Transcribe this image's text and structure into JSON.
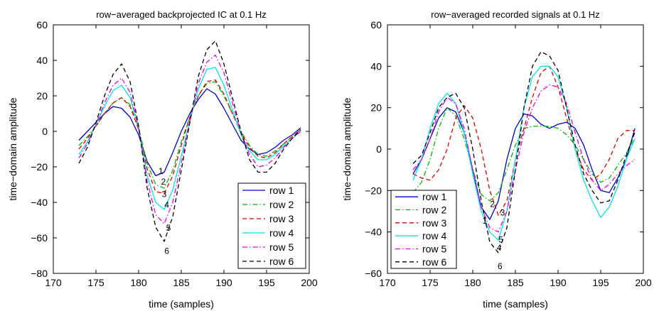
{
  "chart_data": [
    {
      "type": "line",
      "title": "row−averaged backprojected IC at 0.1 Hz",
      "xlabel": "time (samples)",
      "ylabel": "time−domain amplitude",
      "xlim": [
        170,
        200
      ],
      "ylim": [
        -80,
        60
      ],
      "xticks": [
        170,
        175,
        180,
        185,
        190,
        195,
        200
      ],
      "yticks": [
        -80,
        -60,
        -40,
        -20,
        0,
        20,
        40,
        60
      ],
      "xtick_labels": [
        "170",
        "175",
        "180",
        "185",
        "190",
        "195",
        "200"
      ],
      "ytick_labels": [
        "−80",
        "−60",
        "−40",
        "−20",
        "0",
        "20",
        "40",
        "60"
      ],
      "legend_position": "bottom-right",
      "x": [
        173,
        174,
        175,
        176,
        177,
        178,
        179,
        180,
        181,
        182,
        183,
        184,
        185,
        186,
        187,
        188,
        189,
        190,
        191,
        192,
        193,
        194,
        195,
        196,
        197,
        198,
        199
      ],
      "series": [
        {
          "name": "row 1",
          "color": "#0000cc",
          "dash": "",
          "values": [
            -5,
            0,
            5,
            10,
            14,
            13,
            8,
            -2,
            -17,
            -25,
            -23,
            -12,
            0,
            10,
            18,
            24,
            21,
            13,
            4,
            -5,
            -10,
            -13,
            -12,
            -9,
            -5,
            -2,
            2
          ]
        },
        {
          "name": "row 2",
          "color": "#00bb00",
          "dash": "7,3,1.5,3",
          "values": [
            -8,
            -3,
            3,
            10,
            16,
            19,
            15,
            2,
            -18,
            -30,
            -32,
            -22,
            -6,
            8,
            20,
            27,
            28,
            20,
            10,
            0,
            -8,
            -13,
            -14,
            -11,
            -7,
            -3,
            1
          ]
        },
        {
          "name": "row 3",
          "color": "#dd0000",
          "dash": "6,4",
          "values": [
            -10,
            -4,
            3,
            10,
            16,
            19,
            14,
            1,
            -21,
            -34,
            -35,
            -25,
            -8,
            8,
            20,
            28,
            29,
            21,
            10,
            -1,
            -9,
            -14,
            -15,
            -12,
            -7,
            -3,
            1
          ]
        },
        {
          "name": "row 4",
          "color": "#00e5e5",
          "dash": "",
          "values": [
            -13,
            -6,
            4,
            14,
            23,
            26,
            19,
            2,
            -25,
            -40,
            -44,
            -33,
            -14,
            6,
            24,
            35,
            36,
            26,
            12,
            -2,
            -11,
            -16,
            -16,
            -13,
            -8,
            -4,
            0
          ]
        },
        {
          "name": "row 5",
          "color": "#ee00ee",
          "dash": "7,3,1.5,3",
          "values": [
            -15,
            -7,
            4,
            16,
            26,
            30,
            22,
            2,
            -28,
            -47,
            -52,
            -40,
            -18,
            6,
            27,
            39,
            43,
            33,
            16,
            -1,
            -13,
            -20,
            -19,
            -15,
            -9,
            -4,
            0
          ]
        },
        {
          "name": "row 6",
          "color": "#000000",
          "dash": "6,4",
          "values": [
            -18,
            -9,
            5,
            20,
            32,
            38,
            28,
            3,
            -32,
            -54,
            -62,
            -48,
            -22,
            5,
            31,
            46,
            51,
            38,
            19,
            0,
            -16,
            -23,
            -23,
            -18,
            -10,
            -4,
            1
          ]
        }
      ],
      "annotations": [
        {
          "text": "1",
          "x": 182.6,
          "y": -24
        },
        {
          "text": "2",
          "x": 182.9,
          "y": -30
        },
        {
          "text": "3",
          "x": 183.0,
          "y": -37
        },
        {
          "text": "4",
          "x": 183.3,
          "y": -43
        },
        {
          "text": "5",
          "x": 183.5,
          "y": -56
        },
        {
          "text": "6",
          "x": 183.3,
          "y": -69
        }
      ]
    },
    {
      "type": "line",
      "title": "row−averaged recorded signals at 0.1 Hz",
      "xlabel": "time (samples)",
      "ylabel": "time−domain amplitude",
      "xlim": [
        170,
        200
      ],
      "ylim": [
        -60,
        60
      ],
      "xticks": [
        170,
        175,
        180,
        185,
        190,
        195,
        200
      ],
      "yticks": [
        -60,
        -40,
        -20,
        0,
        20,
        40,
        60
      ],
      "xtick_labels": [
        "170",
        "175",
        "180",
        "185",
        "190",
        "195",
        "200"
      ],
      "ytick_labels": [
        "−60",
        "−40",
        "−20",
        "0",
        "20",
        "40",
        "60"
      ],
      "legend_position": "bottom-left",
      "x": [
        173,
        174,
        175,
        176,
        177,
        178,
        179,
        180,
        181,
        182,
        183,
        184,
        185,
        186,
        187,
        188,
        189,
        190,
        191,
        192,
        193,
        194,
        195,
        196,
        197,
        198,
        199
      ],
      "series": [
        {
          "name": "row 1",
          "color": "#0000cc",
          "dash": "",
          "values": [
            -12,
            -5,
            5,
            15,
            20,
            18,
            8,
            -10,
            -28,
            -34,
            -25,
            -5,
            10,
            17,
            16,
            12,
            10,
            12,
            13,
            10,
            2,
            -10,
            -20,
            -21,
            -14,
            -5,
            10
          ]
        },
        {
          "name": "row 2",
          "color": "#00bb00",
          "dash": "7,3,1.5,3",
          "values": [
            -21,
            -16,
            -5,
            10,
            20,
            16,
            5,
            -10,
            -22,
            -25,
            -21,
            -10,
            2,
            10,
            11,
            11,
            11,
            10,
            7,
            2,
            -5,
            -12,
            -16,
            -14,
            -8,
            -2,
            5
          ]
        },
        {
          "name": "row 3",
          "color": "#dd0000",
          "dash": "6,4",
          "values": [
            -12,
            -14,
            -15,
            -10,
            0,
            15,
            21,
            15,
            0,
            -20,
            -32,
            -25,
            -5,
            10,
            25,
            37,
            40,
            30,
            15,
            0,
            -10,
            -15,
            -12,
            -5,
            5,
            9,
            9
          ]
        },
        {
          "name": "row 4",
          "color": "#00e5e5",
          "dash": "",
          "values": [
            -15,
            -5,
            10,
            22,
            27,
            22,
            8,
            -12,
            -30,
            -40,
            -44,
            -30,
            -5,
            20,
            35,
            40,
            40,
            35,
            20,
            0,
            -15,
            -25,
            -33,
            -28,
            -18,
            -5,
            5
          ]
        },
        {
          "name": "row 5",
          "color": "#ee00ee",
          "dash": "7,3,1.5,3",
          "values": [
            -10,
            -5,
            5,
            18,
            25,
            22,
            10,
            -10,
            -28,
            -38,
            -40,
            -30,
            -10,
            8,
            20,
            28,
            31,
            30,
            22,
            8,
            -5,
            -15,
            -20,
            -17,
            -12,
            -8,
            -5
          ]
        },
        {
          "name": "row 6",
          "color": "#000000",
          "dash": "6,4",
          "values": [
            -7,
            -3,
            8,
            20,
            25,
            27,
            20,
            0,
            -25,
            -45,
            -50,
            -38,
            -10,
            20,
            40,
            47,
            45,
            38,
            20,
            2,
            -12,
            -20,
            -26,
            -25,
            -15,
            -3,
            8
          ]
        }
      ],
      "annotations": [
        {
          "text": "1",
          "x": 181.4,
          "y": -36
        },
        {
          "text": "2",
          "x": 182.3,
          "y": -28
        },
        {
          "text": "3",
          "x": 183.5,
          "y": -32
        },
        {
          "text": "4",
          "x": 183.1,
          "y": -49
        },
        {
          "text": "5",
          "x": 183.3,
          "y": -45
        },
        {
          "text": "6",
          "x": 183.2,
          "y": -58
        }
      ]
    }
  ]
}
